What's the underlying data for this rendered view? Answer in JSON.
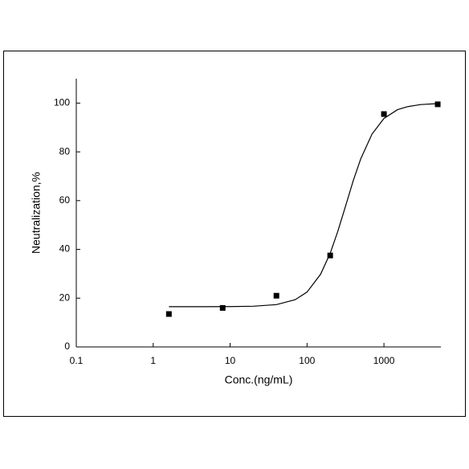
{
  "chart_data": {
    "type": "scatter",
    "x_label": "Conc.(ng/mL)",
    "y_label": "Neutralization,%",
    "xscale": "log",
    "xlim": [
      0.1,
      5500
    ],
    "xticks": [
      0.1,
      1,
      10,
      100,
      1000
    ],
    "ylim": [
      0,
      110
    ],
    "yticks": [
      0,
      20,
      40,
      60,
      80,
      100
    ],
    "series": [
      {
        "type": "scatter",
        "color": "#000000",
        "x": [
          1.6,
          8,
          40,
          200,
          1000,
          5000
        ],
        "values": [
          13.5,
          16,
          21,
          37.5,
          95.5,
          99.5
        ]
      },
      {
        "type": "line",
        "color": "#000000",
        "x": [
          1.6,
          3,
          10,
          20,
          40,
          70,
          100,
          150,
          200,
          250,
          300,
          400,
          500,
          700,
          1000,
          1500,
          2000,
          3000,
          5000
        ],
        "values": [
          16.5,
          16.5,
          16.54,
          16.7,
          17.35,
          19.35,
          22.5,
          29.8,
          38.4,
          47.2,
          55.3,
          68.3,
          77.2,
          87.3,
          93.7,
          97.3,
          98.5,
          99.4,
          99.8
        ]
      }
    ]
  }
}
